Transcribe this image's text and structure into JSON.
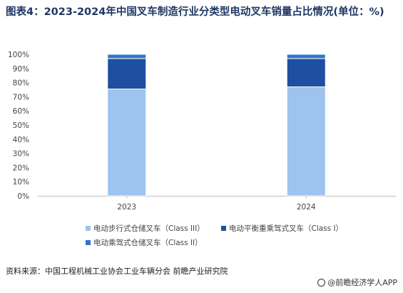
{
  "title": "图表4：2023-2024年中国叉车制造行业分类型电动叉车销量占比情况(单位：%)",
  "source": "资料来源：中国工程机械工业协会工业车辆分会 前瞻产业研究院",
  "brand": "@前瞻经济学人APP",
  "colors": {
    "class3": "#9dc3ee",
    "class1": "#1f4fa0",
    "class2": "#2e75d0"
  },
  "chart_data": {
    "type": "bar",
    "stacked": true,
    "categories": [
      "2023",
      "2024"
    ],
    "series": [
      {
        "name": "电动步行式仓储叉车（Class III）",
        "values": [
          75.5,
          77.0
        ]
      },
      {
        "name": "电动平衡重乘驾式叉车（Class I）",
        "values": [
          21.5,
          20.0
        ]
      },
      {
        "name": "电动乘驾式仓储叉车（Class II）",
        "values": [
          3.0,
          3.0
        ]
      }
    ],
    "yticks": [
      "0%",
      "10%",
      "20%",
      "30%",
      "40%",
      "50%",
      "60%",
      "70%",
      "80%",
      "90%",
      "100%"
    ],
    "ylim": [
      0,
      100
    ],
    "legend_position": "bottom",
    "grid": false
  }
}
